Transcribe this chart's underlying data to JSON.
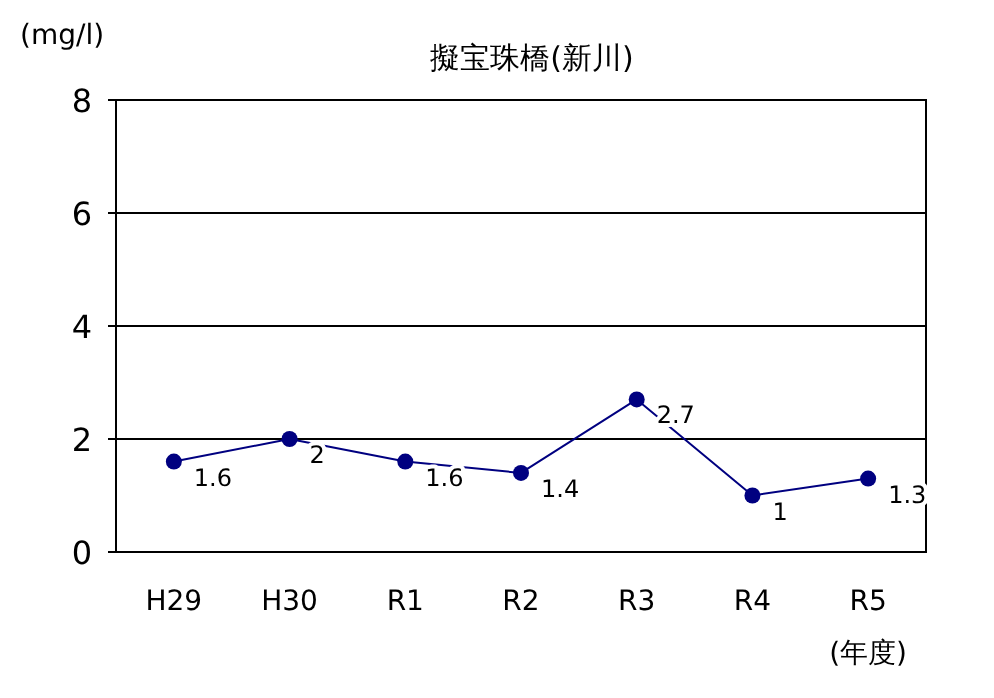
{
  "chart_data": {
    "type": "line",
    "title": "擬宝珠橋(新川)",
    "ylabel": "(mg/l)",
    "xlabel": "(年度)",
    "categories": [
      "H29",
      "H30",
      "R1",
      "R2",
      "R3",
      "R4",
      "R5"
    ],
    "series": [
      {
        "color": "#000080",
        "values": [
          1.6,
          2,
          1.6,
          1.4,
          2.7,
          1,
          1.3
        ]
      }
    ],
    "ylim": [
      0,
      8
    ],
    "yticks": [
      0,
      2,
      4,
      6,
      8
    ],
    "grid": "y",
    "marker": "circle",
    "line_style": "solid",
    "data_labels": true
  }
}
